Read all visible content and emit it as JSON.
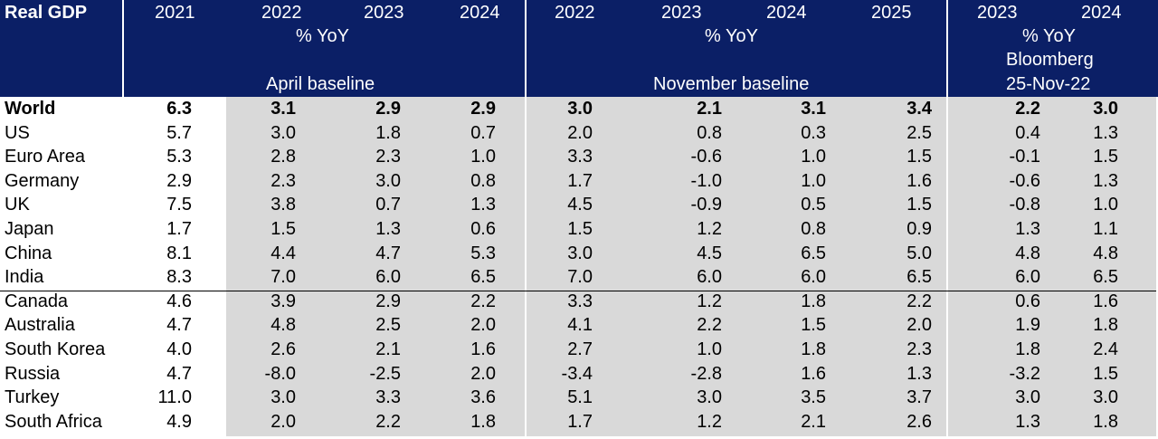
{
  "header": {
    "title": "Real GDP",
    "year_2021": "2021",
    "april": {
      "years": [
        "2022",
        "2023",
        "2024"
      ],
      "unit": "% YoY",
      "label": "April baseline"
    },
    "november": {
      "years": [
        "2022",
        "2023",
        "2024",
        "2025"
      ],
      "unit": "% YoY",
      "label": "November baseline"
    },
    "bloomberg": {
      "years": [
        "2023",
        "2024"
      ],
      "unit": "% YoY",
      "source": "Bloomberg",
      "date": "25-Nov-22"
    }
  },
  "colors": {
    "header_bg": "#0b1f66",
    "shade": "#d9d9d9",
    "header_text": "#ffffff"
  },
  "chart_data": {
    "type": "table",
    "columns": [
      "2021",
      "2022",
      "2023",
      "2024",
      "2022",
      "2023",
      "2024",
      "2025",
      "2023",
      "2024"
    ],
    "column_groups": [
      {
        "label": "April baseline",
        "unit": "% YoY",
        "span": 3
      },
      {
        "label": "November baseline",
        "unit": "% YoY",
        "span": 4
      },
      {
        "label": "Bloomberg 25-Nov-22",
        "unit": "% YoY",
        "span": 2
      }
    ],
    "rows": [
      {
        "label": "World",
        "bold": true,
        "values": [
          "6.3",
          "3.1",
          "2.9",
          "2.9",
          "3.0",
          "2.1",
          "3.1",
          "3.4",
          "2.2",
          "3.0"
        ]
      },
      {
        "label": "US",
        "values": [
          "5.7",
          "3.0",
          "1.8",
          "0.7",
          "2.0",
          "0.8",
          "0.3",
          "2.5",
          "0.4",
          "1.3"
        ]
      },
      {
        "label": "Euro Area",
        "values": [
          "5.3",
          "2.8",
          "2.3",
          "1.0",
          "3.3",
          "-0.6",
          "1.0",
          "1.5",
          "-0.1",
          "1.5"
        ]
      },
      {
        "label": "Germany",
        "values": [
          "2.9",
          "2.3",
          "3.0",
          "0.8",
          "1.7",
          "-1.0",
          "1.0",
          "1.6",
          "-0.6",
          "1.3"
        ]
      },
      {
        "label": "UK",
        "values": [
          "7.5",
          "3.8",
          "0.7",
          "1.3",
          "4.5",
          "-0.9",
          "0.5",
          "1.5",
          "-0.8",
          "1.0"
        ]
      },
      {
        "label": "Japan",
        "values": [
          "1.7",
          "1.5",
          "1.3",
          "0.6",
          "1.5",
          "1.2",
          "0.8",
          "0.9",
          "1.3",
          "1.1"
        ]
      },
      {
        "label": "China",
        "values": [
          "8.1",
          "4.4",
          "4.7",
          "5.3",
          "3.0",
          "4.5",
          "6.5",
          "5.0",
          "4.8",
          "4.8"
        ]
      },
      {
        "label": "India",
        "values": [
          "8.3",
          "7.0",
          "6.0",
          "6.5",
          "7.0",
          "6.0",
          "6.0",
          "6.5",
          "6.0",
          "6.5"
        ]
      },
      {
        "label": "Canada",
        "values": [
          "4.6",
          "3.9",
          "2.9",
          "2.2",
          "3.3",
          "1.2",
          "1.8",
          "2.2",
          "0.6",
          "1.6"
        ]
      },
      {
        "label": "Australia",
        "values": [
          "4.7",
          "4.8",
          "2.5",
          "2.0",
          "4.1",
          "2.2",
          "1.5",
          "2.0",
          "1.9",
          "1.8"
        ]
      },
      {
        "label": "South Korea",
        "values": [
          "4.0",
          "2.6",
          "2.1",
          "1.6",
          "2.7",
          "1.0",
          "1.8",
          "2.3",
          "1.8",
          "2.4"
        ]
      },
      {
        "label": "Russia",
        "values": [
          "4.7",
          "-8.0",
          "-2.5",
          "2.0",
          "-3.4",
          "-2.8",
          "1.6",
          "1.3",
          "-3.2",
          "1.5"
        ]
      },
      {
        "label": "Turkey",
        "values": [
          "11.0",
          "3.0",
          "3.3",
          "3.6",
          "5.1",
          "3.0",
          "3.5",
          "3.7",
          "3.0",
          "3.0"
        ]
      },
      {
        "label": "South Africa",
        "values": [
          "4.9",
          "2.0",
          "2.2",
          "1.8",
          "1.7",
          "1.2",
          "2.1",
          "2.6",
          "1.3",
          "1.8"
        ]
      }
    ]
  }
}
